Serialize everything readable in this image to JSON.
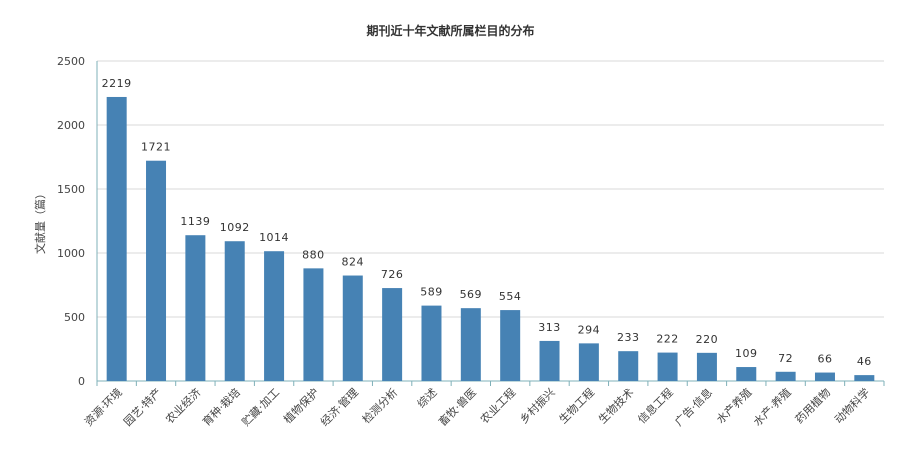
{
  "chart_data": {
    "type": "bar",
    "title": "期刊近十年文献所属栏目的分布",
    "xlabel": "",
    "ylabel": "文献量（篇）",
    "ylim": [
      0,
      2500
    ],
    "yticks": [
      0,
      500,
      1000,
      1500,
      2000,
      2500
    ],
    "grid": true,
    "categories": [
      "资源·环境",
      "园艺·特产",
      "农业经济",
      "育种·栽培",
      "贮藏·加工",
      "植物保护",
      "经济·管理",
      "检测分析",
      "综述",
      "畜牧·兽医",
      "农业工程",
      "乡村振兴",
      "生物工程",
      "生物技术",
      "信息工程",
      "广告·信息",
      "水产养殖",
      "水产·养殖",
      "药用植物",
      "动物科学"
    ],
    "values": [
      2219,
      1721,
      1139,
      1092,
      1014,
      880,
      824,
      726,
      589,
      569,
      554,
      313,
      294,
      233,
      222,
      220,
      109,
      72,
      66,
      46
    ],
    "colors": {
      "bar": "#4682b4",
      "grid": "#d9d9d9",
      "axis": "#7fb0b8"
    }
  }
}
